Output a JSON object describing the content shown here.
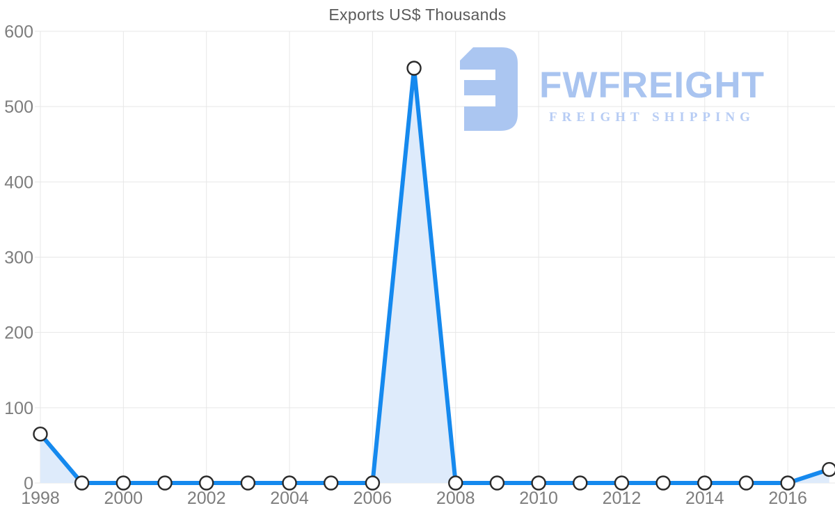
{
  "page": {
    "background": "#ffffff"
  },
  "chart_data": {
    "type": "area",
    "title": "Exports US$ Thousands",
    "xlabel": "",
    "ylabel": "",
    "x": [
      1998,
      1999,
      2000,
      2001,
      2002,
      2003,
      2004,
      2005,
      2006,
      2007,
      2008,
      2009,
      2010,
      2011,
      2012,
      2013,
      2014,
      2015,
      2016,
      2017
    ],
    "series": [
      {
        "name": "Exports US$ Thousands",
        "values": [
          65,
          0,
          0,
          0,
          0,
          0,
          0,
          0,
          0,
          551,
          0,
          0,
          0,
          0,
          0,
          0,
          0,
          0,
          0,
          18
        ]
      }
    ],
    "ylim": [
      0,
      600
    ],
    "yticks": [
      0,
      100,
      200,
      300,
      400,
      500,
      600
    ],
    "xticks": [
      1998,
      2000,
      2002,
      2004,
      2006,
      2008,
      2010,
      2012,
      2014,
      2016
    ],
    "grid": true,
    "legend": false,
    "marker": "circle",
    "colors": {
      "line": "#1589ee",
      "area_fill": "#deebfb",
      "marker_fill": "#ffffff",
      "marker_stroke": "#2b2b2b",
      "grid": "#e7e7e7",
      "tick_label": "#7d7d7d",
      "title": "#5a5a5a"
    }
  },
  "watermark": {
    "brand": "FWFREIGHT",
    "tagline": "FREIGHT SHIPPING",
    "brand_color": "#a9c4f0",
    "tagline_color": "#b7ccf4",
    "mark_color": "#abc6f1",
    "mark_icon": "fwfreight-reversed-e-mark"
  }
}
